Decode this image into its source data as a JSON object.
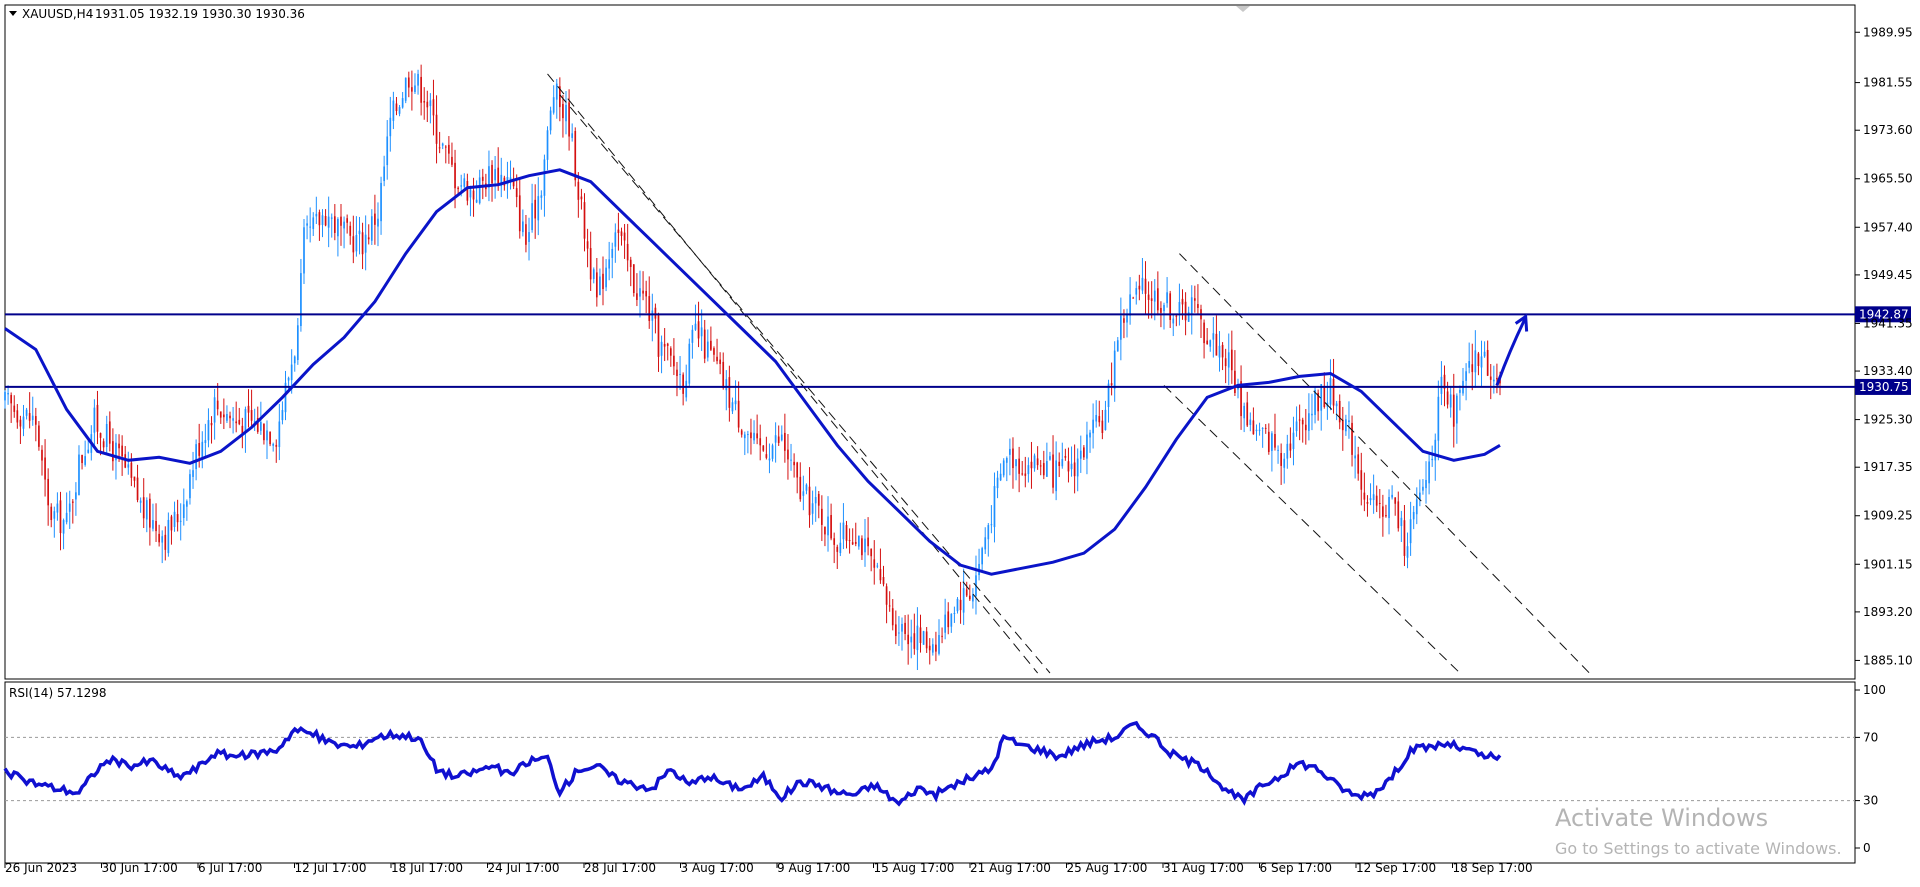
{
  "header": {
    "symbol": "XAUUSD,H4",
    "ohlc": "1931.05 1932.19 1930.30 1930.36",
    "rsi_label": "RSI(14) 57.1298"
  },
  "watermark": {
    "line1": "Activate Windows",
    "line2": "Go to Settings to activate Windows."
  },
  "colors": {
    "bull": "#1e90ff",
    "bear": "#d41010",
    "ma": "#0a14c8",
    "level": "#00008b",
    "rsi": "#1010d0",
    "axis": "#000000",
    "label_bg": "#00008b"
  },
  "chart_data": [
    {
      "type": "candlestick",
      "title": "XAUUSD,H4",
      "ylim": [
        1882.0,
        1994.5
      ],
      "y_ticks": [
        "1989.95",
        "1981.55",
        "1973.60",
        "1965.50",
        "1957.40",
        "1949.45",
        "1941.35",
        "1933.40",
        "1925.30",
        "1917.35",
        "1909.25",
        "1901.15",
        "1893.20",
        "1885.10"
      ],
      "x_ticks": [
        "26 Jun 2023",
        "30 Jun 17:00",
        "6 Jul 17:00",
        "12 Jul 17:00",
        "18 Jul 17:00",
        "24 Jul 17:00",
        "28 Jul 17:00",
        "3 Aug 17:00",
        "9 Aug 17:00",
        "15 Aug 17:00",
        "21 Aug 17:00",
        "25 Aug 17:00",
        "31 Aug 17:00",
        "6 Sep 17:00",
        "12 Sep 17:00",
        "18 Sep 17:00"
      ],
      "price_path": [
        [
          0,
          1928
        ],
        [
          10,
          1925
        ],
        [
          14,
          1910
        ],
        [
          20,
          1908
        ],
        [
          24,
          1918
        ],
        [
          29,
          1925
        ],
        [
          32,
          1923
        ],
        [
          38,
          1918
        ],
        [
          45,
          1910
        ],
        [
          52,
          1906
        ],
        [
          57,
          1910
        ],
        [
          62,
          1920
        ],
        [
          68,
          1928
        ],
        [
          75,
          1925
        ],
        [
          80,
          1925
        ],
        [
          88,
          1923
        ],
        [
          95,
          1940
        ],
        [
          97,
          1955
        ],
        [
          104,
          1960
        ],
        [
          110,
          1956
        ],
        [
          116,
          1955
        ],
        [
          121,
          1960
        ],
        [
          125,
          1975
        ],
        [
          131,
          1983
        ],
        [
          136,
          1980
        ],
        [
          141,
          1972
        ],
        [
          146,
          1966
        ],
        [
          152,
          1963
        ],
        [
          158,
          1967
        ],
        [
          164,
          1965
        ],
        [
          169,
          1955
        ],
        [
          174,
          1965
        ],
        [
          178,
          1980
        ],
        [
          183,
          1975
        ],
        [
          187,
          1960
        ],
        [
          192,
          1945
        ],
        [
          198,
          1958
        ],
        [
          204,
          1948
        ],
        [
          208,
          1945
        ],
        [
          212,
          1938
        ],
        [
          216,
          1935
        ],
        [
          220,
          1932
        ],
        [
          224,
          1940
        ],
        [
          230,
          1935
        ],
        [
          236,
          1928
        ],
        [
          244,
          1920
        ],
        [
          252,
          1922
        ],
        [
          258,
          1913
        ],
        [
          264,
          1910
        ],
        [
          270,
          1905
        ],
        [
          276,
          1907
        ],
        [
          282,
          1900
        ],
        [
          288,
          1892
        ],
        [
          293,
          1890
        ],
        [
          299,
          1888
        ],
        [
          303,
          1889
        ],
        [
          308,
          1895
        ],
        [
          314,
          1897
        ],
        [
          319,
          1908
        ],
        [
          325,
          1920
        ],
        [
          330,
          1918
        ],
        [
          336,
          1918
        ],
        [
          341,
          1916
        ],
        [
          347,
          1918
        ],
        [
          352,
          1922
        ],
        [
          357,
          1926
        ],
        [
          361,
          1940
        ],
        [
          365,
          1945
        ],
        [
          370,
          1947
        ],
        [
          376,
          1945
        ],
        [
          381,
          1943
        ],
        [
          385,
          1945
        ],
        [
          389,
          1940
        ],
        [
          393,
          1938
        ],
        [
          397,
          1935
        ],
        [
          401,
          1928
        ],
        [
          406,
          1923
        ],
        [
          410,
          1922
        ],
        [
          414,
          1920
        ],
        [
          418,
          1923
        ],
        [
          422,
          1926
        ],
        [
          426,
          1929
        ],
        [
          430,
          1930
        ],
        [
          434,
          1926
        ],
        [
          438,
          1920
        ],
        [
          442,
          1911
        ],
        [
          446,
          1910
        ],
        [
          450,
          1912
        ],
        [
          454,
          1905
        ],
        [
          458,
          1910
        ],
        [
          462,
          1918
        ],
        [
          466,
          1930
        ],
        [
          470,
          1926
        ],
        [
          474,
          1932
        ],
        [
          478,
          1936
        ],
        [
          482,
          1934
        ],
        [
          485,
          1931
        ]
      ],
      "moving_average": [
        [
          0,
          1940.5
        ],
        [
          10,
          1937
        ],
        [
          20,
          1927
        ],
        [
          30,
          1920
        ],
        [
          40,
          1918.5
        ],
        [
          50,
          1919
        ],
        [
          60,
          1918
        ],
        [
          70,
          1920
        ],
        [
          80,
          1924
        ],
        [
          90,
          1929
        ],
        [
          100,
          1934.5
        ],
        [
          110,
          1939
        ],
        [
          120,
          1945
        ],
        [
          130,
          1953
        ],
        [
          140,
          1960
        ],
        [
          150,
          1964
        ],
        [
          160,
          1964.5
        ],
        [
          170,
          1966
        ],
        [
          180,
          1967
        ],
        [
          190,
          1965
        ],
        [
          200,
          1960
        ],
        [
          210,
          1955
        ],
        [
          220,
          1950
        ],
        [
          230,
          1945
        ],
        [
          240,
          1940
        ],
        [
          250,
          1935
        ],
        [
          260,
          1928
        ],
        [
          270,
          1921
        ],
        [
          280,
          1915
        ],
        [
          290,
          1910
        ],
        [
          300,
          1905
        ],
        [
          310,
          1901
        ],
        [
          320,
          1899.5
        ],
        [
          330,
          1900.5
        ],
        [
          340,
          1901.5
        ],
        [
          350,
          1903
        ],
        [
          360,
          1907
        ],
        [
          370,
          1914
        ],
        [
          380,
          1922
        ],
        [
          390,
          1929
        ],
        [
          400,
          1931
        ],
        [
          410,
          1931.5
        ],
        [
          420,
          1932.5
        ],
        [
          430,
          1933
        ],
        [
          440,
          1930
        ],
        [
          450,
          1925
        ],
        [
          460,
          1920
        ],
        [
          470,
          1918.5
        ],
        [
          480,
          1919.5
        ],
        [
          485,
          1921
        ]
      ],
      "horizontal_levels": [
        {
          "value": 1942.87,
          "label": "1942.87"
        },
        {
          "value": 1930.75,
          "label": "1930.75"
        }
      ],
      "trend_lines": [
        {
          "from": [
            176,
            1983
          ],
          "to": [
            335,
            1883
          ]
        },
        {
          "from": [
            180,
            1979.5
          ],
          "to": [
            339,
            1883
          ]
        },
        {
          "from": [
            381,
            1953
          ],
          "to": [
            514,
            1883
          ]
        },
        {
          "from": [
            376,
            1931
          ],
          "to": [
            472,
            1883
          ]
        }
      ],
      "projection_arrow": {
        "from": [
          484,
          1931
        ],
        "to": [
          493,
          1942
        ]
      }
    },
    {
      "type": "line",
      "title": "RSI(14) 57.1298",
      "ylim": [
        0,
        100
      ],
      "y_ticks": [
        "100",
        "70",
        "30",
        "0"
      ],
      "levels": [
        70,
        30
      ],
      "values": [
        [
          0,
          48
        ],
        [
          8,
          42
        ],
        [
          16,
          38
        ],
        [
          24,
          35
        ],
        [
          30,
          50
        ],
        [
          34,
          56
        ],
        [
          40,
          52
        ],
        [
          48,
          55
        ],
        [
          56,
          45
        ],
        [
          62,
          50
        ],
        [
          68,
          60
        ],
        [
          76,
          58
        ],
        [
          82,
          60
        ],
        [
          88,
          62
        ],
        [
          94,
          75
        ],
        [
          100,
          72
        ],
        [
          106,
          66
        ],
        [
          114,
          64
        ],
        [
          120,
          70
        ],
        [
          126,
          72
        ],
        [
          134,
          70
        ],
        [
          140,
          50
        ],
        [
          146,
          45
        ],
        [
          152,
          48
        ],
        [
          158,
          52
        ],
        [
          164,
          46
        ],
        [
          170,
          55
        ],
        [
          176,
          57
        ],
        [
          180,
          35
        ],
        [
          186,
          50
        ],
        [
          192,
          52
        ],
        [
          198,
          44
        ],
        [
          204,
          40
        ],
        [
          210,
          38
        ],
        [
          216,
          50
        ],
        [
          222,
          40
        ],
        [
          228,
          46
        ],
        [
          234,
          40
        ],
        [
          240,
          38
        ],
        [
          246,
          45
        ],
        [
          252,
          32
        ],
        [
          258,
          42
        ],
        [
          264,
          40
        ],
        [
          270,
          35
        ],
        [
          276,
          34
        ],
        [
          282,
          40
        ],
        [
          290,
          28
        ],
        [
          296,
          38
        ],
        [
          302,
          34
        ],
        [
          308,
          40
        ],
        [
          314,
          45
        ],
        [
          320,
          50
        ],
        [
          324,
          70
        ],
        [
          330,
          65
        ],
        [
          336,
          62
        ],
        [
          342,
          58
        ],
        [
          348,
          64
        ],
        [
          354,
          68
        ],
        [
          360,
          70
        ],
        [
          366,
          78
        ],
        [
          372,
          72
        ],
        [
          378,
          60
        ],
        [
          384,
          55
        ],
        [
          390,
          50
        ],
        [
          396,
          36
        ],
        [
          402,
          30
        ],
        [
          408,
          40
        ],
        [
          414,
          46
        ],
        [
          420,
          54
        ],
        [
          426,
          50
        ],
        [
          432,
          40
        ],
        [
          438,
          33
        ],
        [
          444,
          35
        ],
        [
          450,
          45
        ],
        [
          456,
          62
        ],
        [
          462,
          64
        ],
        [
          468,
          66
        ],
        [
          474,
          62
        ],
        [
          480,
          58
        ],
        [
          485,
          57
        ]
      ]
    }
  ]
}
